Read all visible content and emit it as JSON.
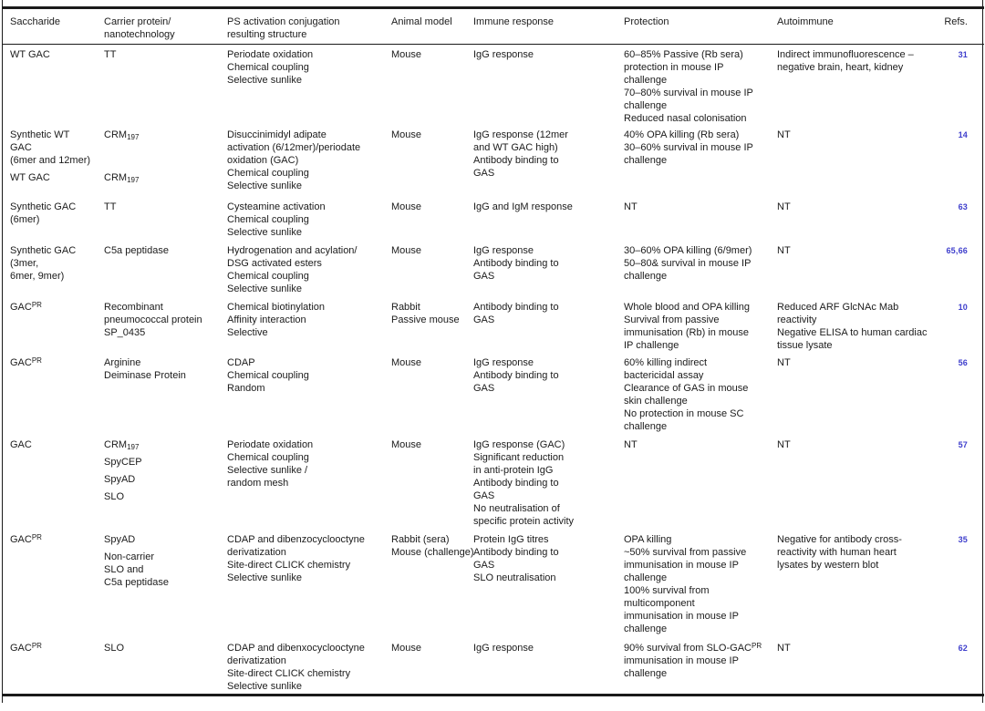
{
  "colors": {
    "text": "#1b1b1b",
    "border": "#1a1a1a",
    "ref_link": "#3e3ecc"
  },
  "columns": [
    {
      "key": "saccharide",
      "label": "Saccharide"
    },
    {
      "key": "carrier",
      "label": "Carrier protein/\nnanotechnology"
    },
    {
      "key": "ps",
      "label": "PS activation conjugation\nresulting structure"
    },
    {
      "key": "animal",
      "label": "Animal model"
    },
    {
      "key": "immune",
      "label": "Immune response"
    },
    {
      "key": "protection",
      "label": "Protection"
    },
    {
      "key": "autoimmune",
      "label": "Autoimmune"
    },
    {
      "key": "refs",
      "label": "Refs."
    }
  ],
  "rows": [
    {
      "saccharide": [
        [
          "WT GAC"
        ]
      ],
      "carrier": [
        [
          "TT"
        ]
      ],
      "ps": [
        [
          "Periodate oxidation",
          "Chemical coupling",
          "Selective sunlike"
        ]
      ],
      "animal": [
        [
          "Mouse"
        ]
      ],
      "immune": [
        [
          "IgG response"
        ]
      ],
      "protection": [
        [
          "60–85% Passive (Rb sera)",
          "protection in mouse IP",
          "challenge",
          "70–80% survival in mouse IP",
          "challenge",
          "Reduced nasal colonisation"
        ]
      ],
      "autoimmune": [
        [
          "Indirect immunofluorescence –",
          "negative brain, heart, kidney"
        ]
      ],
      "refs": "31"
    },
    {
      "saccharide": [
        [
          "Synthetic WT",
          "GAC",
          "(6mer and 12mer)"
        ],
        [
          "WT GAC"
        ]
      ],
      "carrier": [
        [
          "CRM~197~",
          "",
          ""
        ],
        [
          "CRM~197~"
        ]
      ],
      "ps": [
        [
          "Disuccinimidyl adipate",
          "activation (6/12mer)/periodate",
          "oxidation (GAC)",
          "Chemical coupling",
          "Selective sunlike"
        ]
      ],
      "animal": [
        [
          "Mouse"
        ]
      ],
      "immune": [
        [
          "IgG response (12mer",
          "and WT GAC high)",
          "Antibody binding to",
          "GAS"
        ]
      ],
      "protection": [
        [
          "40% OPA killing (Rb sera)",
          "30–60% survival in mouse IP",
          "challenge"
        ]
      ],
      "autoimmune": [
        [
          "NT"
        ]
      ],
      "refs": "14"
    },
    {
      "saccharide": [
        [
          "Synthetic GAC",
          "(6mer)"
        ]
      ],
      "carrier": [
        [
          "TT"
        ]
      ],
      "ps": [
        [
          "Cysteamine activation",
          "Chemical coupling",
          "Selective sunlike"
        ]
      ],
      "animal": [
        [
          "Mouse"
        ]
      ],
      "immune": [
        [
          "IgG and IgM response"
        ]
      ],
      "protection": [
        [
          "NT"
        ]
      ],
      "autoimmune": [
        [
          "NT"
        ]
      ],
      "refs": "63"
    },
    {
      "saccharide": [
        [
          "Synthetic GAC",
          "(3mer,",
          "6mer, 9mer)"
        ]
      ],
      "carrier": [
        [
          "C5a peptidase"
        ]
      ],
      "ps": [
        [
          "Hydrogenation and acylation/",
          "DSG activated esters",
          "Chemical coupling",
          "Selective sunlike"
        ]
      ],
      "animal": [
        [
          "Mouse"
        ]
      ],
      "immune": [
        [
          "IgG response",
          "Antibody binding to",
          "GAS"
        ]
      ],
      "protection": [
        [
          "30–60% OPA killing (6/9mer)",
          "50–80& survival in mouse IP",
          "challenge"
        ]
      ],
      "autoimmune": [
        [
          "NT"
        ]
      ],
      "refs": "65,66"
    },
    {
      "saccharide": [
        [
          "GAC^PR^"
        ]
      ],
      "carrier": [
        [
          "Recombinant",
          "pneumococcal protein",
          "SP_0435"
        ]
      ],
      "ps": [
        [
          "Chemical biotinylation",
          "Affinity interaction",
          "Selective"
        ]
      ],
      "animal": [
        [
          "Rabbit",
          "Passive mouse"
        ]
      ],
      "immune": [
        [
          "Antibody binding to",
          "GAS"
        ]
      ],
      "protection": [
        [
          "Whole blood and OPA killing",
          "Survival from passive",
          "immunisation (Rb) in mouse",
          "IP challenge"
        ]
      ],
      "autoimmune": [
        [
          "Reduced ARF GlcNAc Mab",
          "reactivity",
          "Negative ELISA to human cardiac",
          "tissue lysate"
        ]
      ],
      "refs": "10"
    },
    {
      "saccharide": [
        [
          "GAC^PR^"
        ]
      ],
      "carrier": [
        [
          "Arginine",
          "Deiminase Protein"
        ]
      ],
      "ps": [
        [
          "CDAP",
          "Chemical coupling",
          "Random"
        ]
      ],
      "animal": [
        [
          "Mouse"
        ]
      ],
      "immune": [
        [
          "IgG response",
          "Antibody binding to",
          "GAS"
        ]
      ],
      "protection": [
        [
          "60% killing indirect",
          "bactericidal assay",
          "Clearance of GAS in mouse",
          "skin challenge",
          "No protection in mouse SC",
          "challenge"
        ]
      ],
      "autoimmune": [
        [
          "NT"
        ]
      ],
      "refs": "56"
    },
    {
      "saccharide": [
        [
          "GAC"
        ]
      ],
      "carrier": [
        [
          "CRM~197~"
        ],
        [
          "SpyCEP"
        ],
        [
          "SpyAD"
        ],
        [
          "SLO"
        ]
      ],
      "ps": [
        [
          "Periodate oxidation",
          "Chemical coupling",
          "Selective sunlike /",
          "random mesh"
        ]
      ],
      "animal": [
        [
          "Mouse"
        ]
      ],
      "immune": [
        [
          "IgG response (GAC)",
          "Significant reduction",
          "in anti-protein IgG",
          "Antibody binding to",
          "GAS",
          "No neutralisation of",
          "specific protein activity"
        ]
      ],
      "protection": [
        [
          "NT"
        ]
      ],
      "autoimmune": [
        [
          "NT"
        ]
      ],
      "refs": "57"
    },
    {
      "saccharide": [
        [
          "GAC^PR^"
        ]
      ],
      "carrier": [
        [
          "SpyAD"
        ],
        [
          "Non-carrier",
          "SLO and",
          "C5a peptidase"
        ]
      ],
      "ps": [
        [
          "CDAP and dibenzocyclooctyne",
          "derivatization",
          "Site-direct CLICK chemistry",
          "Selective sunlike"
        ]
      ],
      "animal": [
        [
          "Rabbit (sera)",
          "Mouse (challenge)"
        ]
      ],
      "immune": [
        [
          "Protein IgG titres",
          "Antibody binding to",
          "GAS",
          "SLO neutralisation"
        ]
      ],
      "protection": [
        [
          "OPA killing",
          "~50% survival from passive",
          "immunisation in mouse IP",
          "challenge",
          "100% survival from",
          "multicomponent",
          "immunisation in mouse IP",
          "challenge"
        ]
      ],
      "autoimmune": [
        [
          "Negative for antibody cross-",
          "reactivity with human heart",
          "lysates by western blot"
        ]
      ],
      "refs": "35"
    },
    {
      "saccharide": [
        [
          "GAC^PR^"
        ]
      ],
      "carrier": [
        [
          "SLO"
        ]
      ],
      "ps": [
        [
          "CDAP and dibenxocyclooctyne",
          "derivatization",
          "Site-direct CLICK chemistry",
          "Selective sunlike"
        ]
      ],
      "animal": [
        [
          "Mouse"
        ]
      ],
      "immune": [
        [
          "IgG response"
        ]
      ],
      "protection": [
        [
          "90% survival from SLO-GAC^PR^",
          "immunisation in mouse IP",
          "challenge"
        ]
      ],
      "autoimmune": [
        [
          "NT"
        ]
      ],
      "refs": "62"
    }
  ]
}
